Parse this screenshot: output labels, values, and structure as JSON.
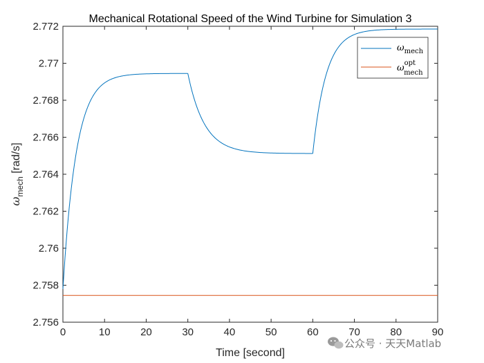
{
  "chart_data": {
    "type": "line",
    "title": "Mechanical Rotational Speed of the Wind Turbine for Simulation 3",
    "xlabel": "Time [second]",
    "ylabel": {
      "symbol": "ω",
      "subscript": "mech",
      "unit": " [rad/s]"
    },
    "xlim": [
      0,
      90
    ],
    "ylim": [
      2.756,
      2.772
    ],
    "xticks": [
      0,
      10,
      20,
      30,
      40,
      50,
      60,
      70,
      80,
      90
    ],
    "xtick_labels": [
      "0",
      "10",
      "20",
      "30",
      "40",
      "50",
      "60",
      "70",
      "80",
      "90"
    ],
    "yticks": [
      2.756,
      2.758,
      2.76,
      2.762,
      2.764,
      2.766,
      2.768,
      2.77,
      2.772
    ],
    "ytick_labels": [
      "2.756",
      "2.758",
      "2.76",
      "2.762",
      "2.764",
      "2.766",
      "2.768",
      "2.77",
      "2.772"
    ],
    "grid": false,
    "legend_position": "top-right",
    "series": [
      {
        "name": "ω_mech",
        "legend": {
          "symbol": "ω",
          "subscript": "mech",
          "superscript": ""
        },
        "color": "#0072BD",
        "segments": [
          {
            "t_start": 0,
            "t_end": 30,
            "y_start": 2.7578,
            "y_end": 2.76945,
            "tau": 3.2
          },
          {
            "t_start": 30,
            "t_end": 60,
            "y_start": 2.76945,
            "y_end": 2.76512,
            "tau": 4.0
          },
          {
            "t_start": 60,
            "t_end": 90,
            "y_start": 2.76512,
            "y_end": 2.77185,
            "tau": 3.2
          }
        ]
      },
      {
        "name": "ω_mech^opt",
        "legend": {
          "symbol": "ω",
          "subscript": "mech",
          "superscript": "opt"
        },
        "color": "#D95319",
        "constant": 2.75745
      }
    ]
  },
  "watermark": {
    "text": "公众号 · 天天Matlab"
  }
}
